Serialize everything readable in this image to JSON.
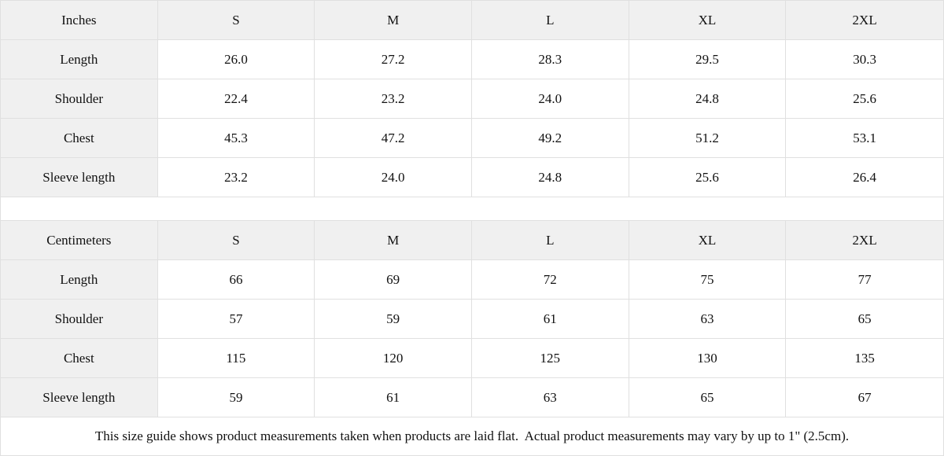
{
  "colors": {
    "header_bg": "#f0f0f0",
    "label_bg": "#f0f0f0",
    "cell_bg": "#ffffff",
    "border": "#e0e0e0",
    "text": "#111111"
  },
  "tables": [
    {
      "unit": "Inches",
      "sizes": [
        "S",
        "M",
        "L",
        "XL",
        "2XL"
      ],
      "rows": [
        {
          "label": "Length",
          "values": [
            "26.0",
            "27.2",
            "28.3",
            "29.5",
            "30.3"
          ]
        },
        {
          "label": "Shoulder",
          "values": [
            "22.4",
            "23.2",
            "24.0",
            "24.8",
            "25.6"
          ]
        },
        {
          "label": "Chest",
          "values": [
            "45.3",
            "47.2",
            "49.2",
            "51.2",
            "53.1"
          ]
        },
        {
          "label": "Sleeve length",
          "values": [
            "23.2",
            "24.0",
            "24.8",
            "25.6",
            "26.4"
          ]
        }
      ]
    },
    {
      "unit": "Centimeters",
      "sizes": [
        "S",
        "M",
        "L",
        "XL",
        "2XL"
      ],
      "rows": [
        {
          "label": "Length",
          "values": [
            "66",
            "69",
            "72",
            "75",
            "77"
          ]
        },
        {
          "label": "Shoulder",
          "values": [
            "57",
            "59",
            "61",
            "63",
            "65"
          ]
        },
        {
          "label": "Chest",
          "values": [
            "115",
            "120",
            "125",
            "130",
            "135"
          ]
        },
        {
          "label": "Sleeve length",
          "values": [
            "59",
            "61",
            "63",
            "65",
            "67"
          ]
        }
      ]
    }
  ],
  "footer": {
    "note": "This size guide shows product measurements taken when products are laid flat.  Actual product measurements may vary by up to 1\" (2.5cm)."
  }
}
